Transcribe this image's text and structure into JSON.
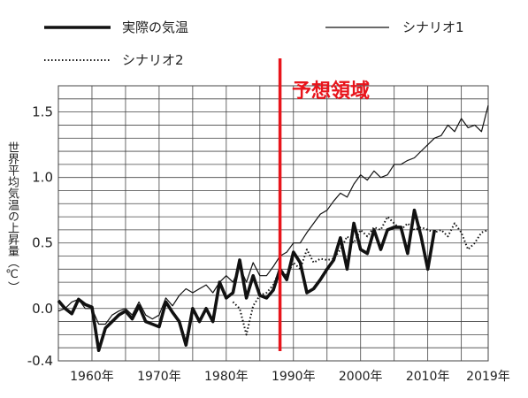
{
  "chart_data": {
    "type": "line",
    "title": "",
    "ylabel": "世界平均気温の上昇量（℃）",
    "xlabel": "",
    "annotation": "予想領域",
    "forecast_start_year": 1988,
    "xlim": [
      1955,
      2019
    ],
    "ylim": [
      -0.4,
      1.7
    ],
    "x_ticks": [
      {
        "value": 1960,
        "label": "1960年"
      },
      {
        "value": 1970,
        "label": "1970年"
      },
      {
        "value": 1980,
        "label": "1980年"
      },
      {
        "value": 1990,
        "label": "1990年"
      },
      {
        "value": 2000,
        "label": "2000年"
      },
      {
        "value": 2010,
        "label": "2010年"
      },
      {
        "value": 2019,
        "label": "2019年"
      }
    ],
    "y_ticks": [
      {
        "value": -0.4,
        "label": "-0.4"
      },
      {
        "value": 0.0,
        "label": "0.0"
      },
      {
        "value": 0.5,
        "label": "0.5"
      },
      {
        "value": 1.0,
        "label": "1.0"
      },
      {
        "value": 1.5,
        "label": "1.5"
      }
    ],
    "grid": true,
    "legend_position": "top",
    "colors": {
      "annotation": "#e8141b",
      "forecast_line": "#e8141b",
      "series": "#111111",
      "grid": "#444444"
    },
    "series": [
      {
        "name": "実際の気温",
        "style": "thick",
        "x": [
          1955,
          1956,
          1957,
          1958,
          1959,
          1960,
          1961,
          1962,
          1963,
          1964,
          1965,
          1966,
          1967,
          1968,
          1969,
          1970,
          1971,
          1972,
          1973,
          1974,
          1975,
          1976,
          1977,
          1978,
          1979,
          1980,
          1981,
          1982,
          1983,
          1984,
          1985,
          1986,
          1987,
          1988,
          1989,
          1990,
          1991,
          1992,
          1993,
          1994,
          1995,
          1996,
          1997,
          1998,
          1999,
          2000,
          2001,
          2002,
          2003,
          2004,
          2005,
          2006,
          2007,
          2008,
          2009,
          2010,
          2011
        ],
        "y": [
          0.06,
          0.0,
          -0.04,
          0.07,
          0.03,
          0.01,
          -0.32,
          -0.15,
          -0.1,
          -0.05,
          -0.02,
          -0.08,
          0.02,
          -0.1,
          -0.12,
          -0.14,
          0.05,
          -0.03,
          -0.1,
          -0.28,
          0.0,
          -0.1,
          0.0,
          -0.1,
          0.2,
          0.08,
          0.12,
          0.37,
          0.08,
          0.25,
          0.1,
          0.08,
          0.14,
          0.3,
          0.22,
          0.43,
          0.35,
          0.12,
          0.15,
          0.22,
          0.3,
          0.37,
          0.54,
          0.3,
          0.65,
          0.45,
          0.42,
          0.6,
          0.45,
          0.6,
          0.62,
          0.62,
          0.42,
          0.75,
          0.55,
          0.3,
          0.6
        ]
      },
      {
        "name": "シナリオ1",
        "style": "thin",
        "x": [
          1955,
          1956,
          1957,
          1958,
          1959,
          1960,
          1961,
          1962,
          1963,
          1964,
          1965,
          1966,
          1967,
          1968,
          1969,
          1970,
          1971,
          1972,
          1973,
          1974,
          1975,
          1976,
          1977,
          1978,
          1979,
          1980,
          1981,
          1982,
          1983,
          1984,
          1985,
          1986,
          1987,
          1988,
          1989,
          1990,
          1991,
          1992,
          1993,
          1994,
          1995,
          1996,
          1997,
          1998,
          1999,
          2000,
          2001,
          2002,
          2003,
          2004,
          2005,
          2006,
          2007,
          2008,
          2009,
          2010,
          2011,
          2012,
          2013,
          2014,
          2015,
          2016,
          2017,
          2018,
          2019
        ],
        "y": [
          -0.02,
          0.0,
          0.05,
          0.07,
          0.0,
          0.0,
          -0.12,
          -0.12,
          -0.05,
          -0.02,
          0.0,
          -0.05,
          0.05,
          -0.05,
          -0.08,
          -0.05,
          0.08,
          0.02,
          0.1,
          0.15,
          0.12,
          0.15,
          0.18,
          0.12,
          0.2,
          0.25,
          0.2,
          0.32,
          0.2,
          0.35,
          0.25,
          0.25,
          0.32,
          0.4,
          0.43,
          0.5,
          0.5,
          0.58,
          0.65,
          0.72,
          0.75,
          0.82,
          0.88,
          0.85,
          0.95,
          1.02,
          0.98,
          1.05,
          1.0,
          1.02,
          1.1,
          1.1,
          1.13,
          1.15,
          1.2,
          1.25,
          1.3,
          1.32,
          1.4,
          1.35,
          1.45,
          1.38,
          1.4,
          1.35,
          1.55
        ]
      },
      {
        "name": "シナリオ2",
        "style": "dotted",
        "x": [
          1981,
          1982,
          1983,
          1984,
          1985,
          1986,
          1987,
          1988,
          1989,
          1990,
          1991,
          1992,
          1993,
          1994,
          1995,
          1996,
          1997,
          1998,
          1999,
          2000,
          2001,
          2002,
          2003,
          2004,
          2005,
          2006,
          2007,
          2008,
          2009,
          2010,
          2011,
          2012,
          2013,
          2014,
          2015,
          2016,
          2017,
          2018,
          2019
        ],
        "y": [
          0.05,
          0.0,
          -0.2,
          0.02,
          0.1,
          0.12,
          0.18,
          0.3,
          0.25,
          0.35,
          0.3,
          0.45,
          0.35,
          0.38,
          0.37,
          0.38,
          0.45,
          0.55,
          0.5,
          0.6,
          0.55,
          0.62,
          0.6,
          0.7,
          0.65,
          0.6,
          0.65,
          0.6,
          0.62,
          0.6,
          0.58,
          0.6,
          0.55,
          0.65,
          0.58,
          0.45,
          0.5,
          0.58,
          0.6
        ]
      }
    ]
  }
}
